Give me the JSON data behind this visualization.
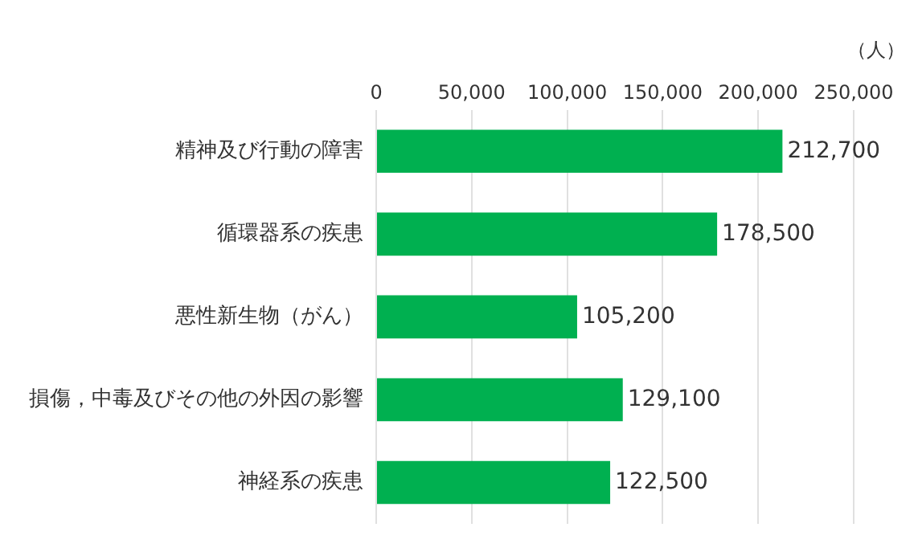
{
  "chart_data": {
    "type": "bar",
    "orientation": "horizontal",
    "xlabel": "（人）",
    "categories": [
      "精神及び行動の障害",
      "循環器系の疾患",
      "悪性新生物（がん）",
      "損傷，中毒及びその他の外因の影響",
      "神経系の疾患"
    ],
    "values": [
      212700,
      178500,
      105200,
      129100,
      122500
    ],
    "value_labels": [
      "212,700",
      "178,500",
      "105,200",
      "129,100",
      "122,500"
    ],
    "color": "#00b050",
    "xlim": [
      0,
      250000
    ],
    "xticks": [
      {
        "value": 0,
        "label": "0"
      },
      {
        "value": 50000,
        "label": "50,000"
      },
      {
        "value": 100000,
        "label": "100,000"
      },
      {
        "value": 150000,
        "label": "150,000"
      },
      {
        "value": 200000,
        "label": "200,000"
      },
      {
        "value": 250000,
        "label": "250,000"
      }
    ],
    "grid": "x",
    "legend": false
  }
}
